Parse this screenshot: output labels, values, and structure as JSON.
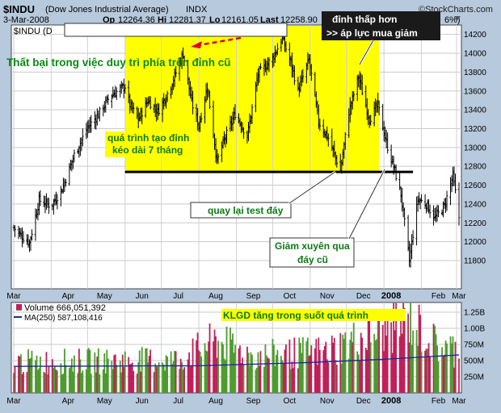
{
  "header": {
    "symbol": "$INDU",
    "name": "(Dow Jones Industrial Average)",
    "exchange": "INDX",
    "source": "©StockCharts.com",
    "date": "3-Mar-2008",
    "op_label": "Op",
    "op": "12264.36",
    "hi_label": "Hi",
    "hi": "12281.37",
    "lo_label": "Lo",
    "lo": "12161.05",
    "last_label": "Last",
    "last": "12258.90",
    "chg_partial": "6%)",
    "legend_partial": "$INDU (D"
  },
  "annotations": {
    "left_title": "Thất bại trong việc duy trì phía trên đỉnh cũ",
    "lower_high_1": "đỉnh thấp hơn",
    "lower_high_2": ">> áp lực mua giảm",
    "top_process_1": "quá trình tạo đỉnh",
    "top_process_2": "kéo dài 7 tháng",
    "retest": "quay lại test đáy",
    "break_1": "Giảm xuyên qua",
    "break_2": "đáy cũ",
    "volume_note": "KLGD tăng trong suốt quá trình"
  },
  "volume_legend": {
    "volume": "Volume 666,051,392",
    "ma": "MA(250) 587,108,416"
  },
  "colors": {
    "background": "#b7c9dc",
    "panel": "#ffffff",
    "highlight": "#ffff00",
    "up_volume": "#4d9b2f",
    "down_volume": "#c0205a",
    "ma_line": "#1a2a9a",
    "support_line": "#000000",
    "arrow": "#e00000"
  },
  "chart_data": [
    {
      "type": "candlestick",
      "ylim": [
        11500,
        14300
      ],
      "yticks": [
        11800,
        12000,
        12200,
        12400,
        12600,
        12800,
        13000,
        13200,
        13400,
        13600,
        13800,
        14000,
        14200
      ],
      "x_labels": [
        "Mar",
        "Apr",
        "May",
        "Jun",
        "Jul",
        "Aug",
        "Sep",
        "Oct",
        "Nov",
        "Dec",
        "2008",
        "Feb",
        "Mar"
      ],
      "support_level": 12740,
      "topping_range": [
        "Jun",
        "Dec"
      ],
      "close_path": [
        [
          "2007-03-01",
          12150
        ],
        [
          "2007-03-06",
          12080
        ],
        [
          "2007-03-14",
          11990
        ],
        [
          "2007-03-22",
          12440
        ],
        [
          "2007-04-01",
          12380
        ],
        [
          "2007-04-10",
          12560
        ],
        [
          "2007-04-20",
          12920
        ],
        [
          "2007-05-01",
          13210
        ],
        [
          "2007-05-10",
          13350
        ],
        [
          "2007-05-20",
          13550
        ],
        [
          "2007-06-01",
          13650
        ],
        [
          "2007-06-05",
          13450
        ],
        [
          "2007-06-12",
          13300
        ],
        [
          "2007-06-20",
          13500
        ],
        [
          "2007-06-28",
          13380
        ],
        [
          "2007-07-08",
          13620
        ],
        [
          "2007-07-19",
          14000
        ],
        [
          "2007-07-26",
          13480
        ],
        [
          "2007-08-01",
          13230
        ],
        [
          "2007-08-08",
          13650
        ],
        [
          "2007-08-16",
          12850
        ],
        [
          "2007-08-22",
          13080
        ],
        [
          "2007-08-31",
          13360
        ],
        [
          "2007-09-10",
          13120
        ],
        [
          "2007-09-19",
          13780
        ],
        [
          "2007-10-01",
          13950
        ],
        [
          "2007-10-09",
          14160
        ],
        [
          "2007-10-16",
          13900
        ],
        [
          "2007-10-22",
          13600
        ],
        [
          "2007-10-31",
          13930
        ],
        [
          "2007-11-08",
          13270
        ],
        [
          "2007-11-16",
          13100
        ],
        [
          "2007-11-26",
          12750
        ],
        [
          "2007-12-03",
          13380
        ],
        [
          "2007-12-11",
          13750
        ],
        [
          "2007-12-20",
          13300
        ],
        [
          "2007-12-27",
          13450
        ],
        [
          "2008-01-03",
          13050
        ],
        [
          "2008-01-10",
          12750
        ],
        [
          "2008-01-15",
          12500
        ],
        [
          "2008-01-22",
          11800
        ],
        [
          "2008-01-29",
          12450
        ],
        [
          "2008-02-05",
          12400
        ],
        [
          "2008-02-12",
          12250
        ],
        [
          "2008-02-20",
          12380
        ],
        [
          "2008-02-27",
          12700
        ],
        [
          "2008-03-03",
          12258.9
        ]
      ]
    },
    {
      "type": "bar",
      "name": "Volume",
      "ylim": [
        0,
        1400000000
      ],
      "yticks_labels": [
        "250M",
        "500M",
        "750M",
        "1.00B",
        "1.25B"
      ],
      "yticks": [
        250000000,
        500000000,
        750000000,
        1000000000,
        1250000000
      ],
      "x_labels": [
        "Mar",
        "Apr",
        "May",
        "Jun",
        "Jul",
        "Aug",
        "Sep",
        "Oct",
        "Nov",
        "Dec",
        "2008",
        "Feb",
        "Mar"
      ],
      "last_volume": 666051392,
      "ma250_last": 587108416,
      "ma250_path": [
        [
          "2007-03-01",
          410000000
        ],
        [
          "2007-08-01",
          420000000
        ],
        [
          "2007-11-01",
          470000000
        ],
        [
          "2008-01-01",
          520000000
        ],
        [
          "2008-03-03",
          587108416
        ]
      ],
      "volume_level_path": [
        [
          "2007-03-01",
          500000000
        ],
        [
          "2007-07-15",
          540000000
        ],
        [
          "2007-08-15",
          850000000
        ],
        [
          "2007-09-15",
          600000000
        ],
        [
          "2007-11-15",
          680000000
        ],
        [
          "2008-01-22",
          1200000000
        ],
        [
          "2008-02-15",
          750000000
        ],
        [
          "2008-03-03",
          700000000
        ]
      ]
    }
  ]
}
